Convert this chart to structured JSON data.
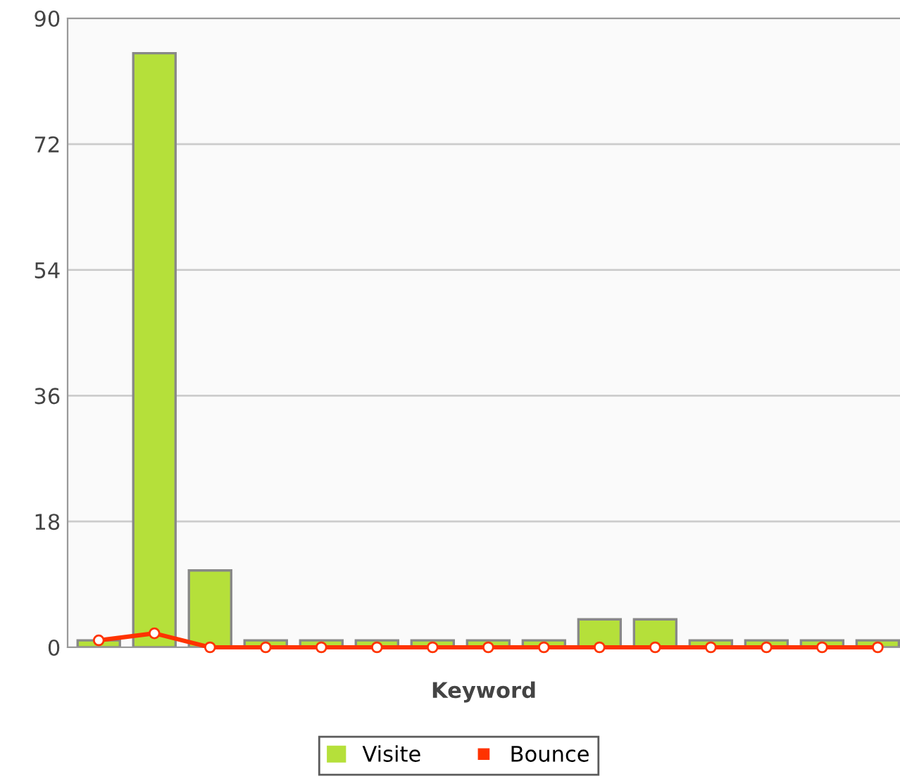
{
  "chart_data": {
    "type": "bar",
    "xlabel": "Keyword",
    "categories": [
      null,
      null,
      null,
      null,
      null,
      null,
      null,
      null,
      null,
      null,
      null,
      null,
      null,
      null,
      null
    ],
    "series": [
      {
        "name": "Visite",
        "color": "#b5e03a",
        "values": [
          1,
          85,
          11,
          1,
          1,
          1,
          1,
          1,
          1,
          4,
          4,
          1,
          1,
          1,
          1
        ]
      },
      {
        "name": "Bounce",
        "type": "line",
        "color": "#ff3300",
        "values": [
          1,
          2,
          0,
          0,
          0,
          0,
          0,
          0,
          0,
          0,
          0,
          0,
          0,
          0,
          0
        ]
      }
    ],
    "ylim": [
      0,
      90
    ],
    "yticks": [
      0,
      18,
      36,
      54,
      72,
      90
    ],
    "grid": "y",
    "legend": "bottom",
    "marker": "circle",
    "line_style": "solid"
  }
}
